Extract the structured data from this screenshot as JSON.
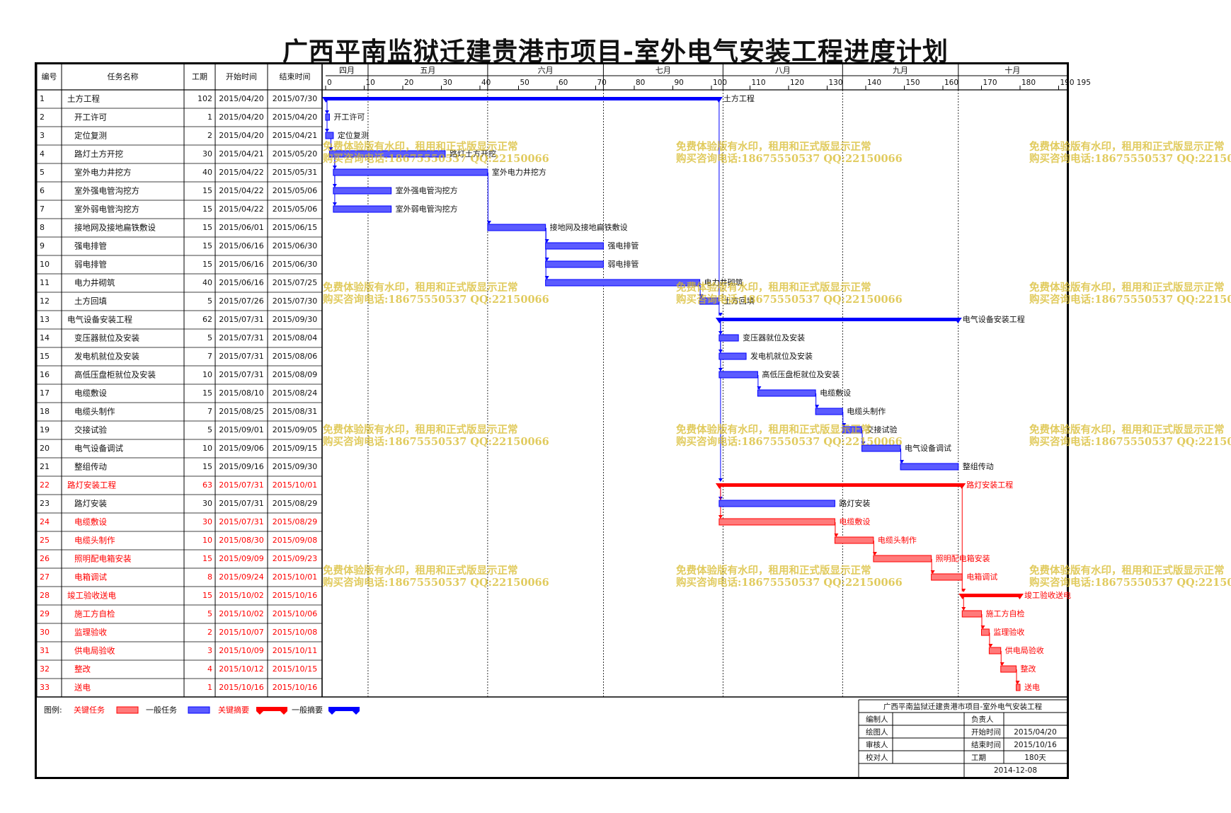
{
  "title": "广西平南监狱迁建贵港市项目-室外电气安装工程进度计划",
  "headers": {
    "no": "编号",
    "name": "任务名称",
    "dur": "工期",
    "start": "开始时间",
    "end": "结束时间"
  },
  "months": [
    {
      "label": "四月",
      "from": -19,
      "to": 11
    },
    {
      "label": "五月",
      "from": 11,
      "to": 42
    },
    {
      "label": "六月",
      "from": 42,
      "to": 72
    },
    {
      "label": "七月",
      "from": 72,
      "to": 103
    },
    {
      "label": "八月",
      "from": 103,
      "to": 134
    },
    {
      "label": "九月",
      "from": 134,
      "to": 164
    },
    {
      "label": "十月",
      "from": 164,
      "to": 195
    }
  ],
  "ticks": [
    0,
    10,
    20,
    30,
    40,
    50,
    60,
    70,
    80,
    90,
    100,
    110,
    120,
    130,
    140,
    150,
    160,
    170,
    180,
    "190 195"
  ],
  "chart_data": {
    "type": "gantt",
    "x_unit": "days since 2015/04/20",
    "xlim": [
      0,
      195
    ],
    "tasks": [
      {
        "no": "1",
        "name": "土方工程",
        "dur": 102,
        "start": "2015/04/20",
        "end": "2015/07/30",
        "s": 0,
        "e": 102,
        "kind": "summary",
        "critical": false,
        "label": "土方工程",
        "indent": 0
      },
      {
        "no": "2",
        "name": "开工许可",
        "dur": 1,
        "start": "2015/04/20",
        "end": "2015/04/20",
        "s": 0,
        "e": 1,
        "kind": "task",
        "critical": false,
        "label": "开工许可",
        "indent": 1
      },
      {
        "no": "3",
        "name": "定位复测",
        "dur": 2,
        "start": "2015/04/20",
        "end": "2015/04/21",
        "s": 0,
        "e": 2,
        "kind": "task",
        "critical": false,
        "label": "定位复测",
        "indent": 1
      },
      {
        "no": "4",
        "name": "路灯土方开挖",
        "dur": 30,
        "start": "2015/04/21",
        "end": "2015/05/20",
        "s": 1,
        "e": 31,
        "kind": "task",
        "critical": false,
        "label": "路灯土方开挖",
        "indent": 1
      },
      {
        "no": "5",
        "name": "室外电力井挖方",
        "dur": 40,
        "start": "2015/04/22",
        "end": "2015/05/31",
        "s": 2,
        "e": 42,
        "kind": "task",
        "critical": false,
        "label": "室外电力井挖方",
        "indent": 1
      },
      {
        "no": "6",
        "name": "室外强电管沟挖方",
        "dur": 15,
        "start": "2015/04/22",
        "end": "2015/05/06",
        "s": 2,
        "e": 17,
        "kind": "task",
        "critical": false,
        "label": "室外强电管沟挖方",
        "indent": 1
      },
      {
        "no": "7",
        "name": "室外弱电管沟挖方",
        "dur": 15,
        "start": "2015/04/22",
        "end": "2015/05/06",
        "s": 2,
        "e": 17,
        "kind": "task",
        "critical": false,
        "label": "室外弱电管沟挖方",
        "indent": 1
      },
      {
        "no": "8",
        "name": "接地网及接地扁铁敷设",
        "dur": 15,
        "start": "2015/06/01",
        "end": "2015/06/15",
        "s": 42,
        "e": 57,
        "kind": "task",
        "critical": false,
        "label": "接地网及接地扁铁敷设",
        "indent": 1
      },
      {
        "no": "9",
        "name": "强电排管",
        "dur": 15,
        "start": "2015/06/16",
        "end": "2015/06/30",
        "s": 57,
        "e": 72,
        "kind": "task",
        "critical": false,
        "label": "强电排管",
        "indent": 1
      },
      {
        "no": "10",
        "name": "弱电排管",
        "dur": 15,
        "start": "2015/06/16",
        "end": "2015/06/30",
        "s": 57,
        "e": 72,
        "kind": "task",
        "critical": false,
        "label": "弱电排管",
        "indent": 1
      },
      {
        "no": "11",
        "name": "电力井砌筑",
        "dur": 40,
        "start": "2015/06/16",
        "end": "2015/07/25",
        "s": 57,
        "e": 97,
        "kind": "task",
        "critical": false,
        "label": "电力井砌筑",
        "indent": 1
      },
      {
        "no": "12",
        "name": "土方回填",
        "dur": 5,
        "start": "2015/07/26",
        "end": "2015/07/30",
        "s": 97,
        "e": 102,
        "kind": "task",
        "critical": false,
        "label": "土方回填",
        "indent": 1
      },
      {
        "no": "13",
        "name": "电气设备安装工程",
        "dur": 62,
        "start": "2015/07/31",
        "end": "2015/09/30",
        "s": 102,
        "e": 164,
        "kind": "summary",
        "critical": false,
        "label": "电气设备安装工程",
        "indent": 0
      },
      {
        "no": "14",
        "name": "变压器就位及安装",
        "dur": 5,
        "start": "2015/07/31",
        "end": "2015/08/04",
        "s": 102,
        "e": 107,
        "kind": "task",
        "critical": false,
        "label": "变压器就位及安装",
        "indent": 1
      },
      {
        "no": "15",
        "name": "发电机就位及安装",
        "dur": 7,
        "start": "2015/07/31",
        "end": "2015/08/06",
        "s": 102,
        "e": 109,
        "kind": "task",
        "critical": false,
        "label": "发电机就位及安装",
        "indent": 1
      },
      {
        "no": "16",
        "name": "高低压盘柜就位及安装",
        "dur": 10,
        "start": "2015/07/31",
        "end": "2015/08/09",
        "s": 102,
        "e": 112,
        "kind": "task",
        "critical": false,
        "label": "高低压盘柜就位及安装",
        "indent": 1
      },
      {
        "no": "17",
        "name": "电缆敷设",
        "dur": 15,
        "start": "2015/08/10",
        "end": "2015/08/24",
        "s": 112,
        "e": 127,
        "kind": "task",
        "critical": false,
        "label": "电缆敷设",
        "indent": 1
      },
      {
        "no": "18",
        "name": "电缆头制作",
        "dur": 7,
        "start": "2015/08/25",
        "end": "2015/08/31",
        "s": 127,
        "e": 134,
        "kind": "task",
        "critical": false,
        "label": "电缆头制作",
        "indent": 1
      },
      {
        "no": "19",
        "name": "交接试验",
        "dur": 5,
        "start": "2015/09/01",
        "end": "2015/09/05",
        "s": 134,
        "e": 139,
        "kind": "task",
        "critical": false,
        "label": "交接试验",
        "indent": 1
      },
      {
        "no": "20",
        "name": "电气设备调试",
        "dur": 10,
        "start": "2015/09/06",
        "end": "2015/09/15",
        "s": 139,
        "e": 149,
        "kind": "task",
        "critical": false,
        "label": "电气设备调试",
        "indent": 1
      },
      {
        "no": "21",
        "name": "整组传动",
        "dur": 15,
        "start": "2015/09/16",
        "end": "2015/09/30",
        "s": 149,
        "e": 164,
        "kind": "task",
        "critical": false,
        "label": "整组传动",
        "indent": 1
      },
      {
        "no": "22",
        "name": "路灯安装工程",
        "dur": 63,
        "start": "2015/07/31",
        "end": "2015/10/01",
        "s": 102,
        "e": 165,
        "kind": "summary",
        "critical": true,
        "label": "路灯安装工程",
        "indent": 0
      },
      {
        "no": "23",
        "name": "路灯安装",
        "dur": 30,
        "start": "2015/07/31",
        "end": "2015/08/29",
        "s": 102,
        "e": 132,
        "kind": "task",
        "critical": false,
        "label": "路灯安装",
        "indent": 1
      },
      {
        "no": "24",
        "name": "电缆敷设",
        "dur": 30,
        "start": "2015/07/31",
        "end": "2015/08/29",
        "s": 102,
        "e": 132,
        "kind": "task",
        "critical": true,
        "label": "电缆敷设",
        "indent": 1
      },
      {
        "no": "25",
        "name": "电缆头制作",
        "dur": 10,
        "start": "2015/08/30",
        "end": "2015/09/08",
        "s": 132,
        "e": 142,
        "kind": "task",
        "critical": true,
        "label": "电缆头制作",
        "indent": 1
      },
      {
        "no": "26",
        "name": "照明配电箱安装",
        "dur": 15,
        "start": "2015/09/09",
        "end": "2015/09/23",
        "s": 142,
        "e": 157,
        "kind": "task",
        "critical": true,
        "label": "照明配电箱安装",
        "indent": 1
      },
      {
        "no": "27",
        "name": "电箱调试",
        "dur": 8,
        "start": "2015/09/24",
        "end": "2015/10/01",
        "s": 157,
        "e": 165,
        "kind": "task",
        "critical": true,
        "label": "电箱调试",
        "indent": 1
      },
      {
        "no": "28",
        "name": "竣工验收送电",
        "dur": 15,
        "start": "2015/10/02",
        "end": "2015/10/16",
        "s": 165,
        "e": 180,
        "kind": "summary",
        "critical": true,
        "label": "竣工验收送电",
        "indent": 0
      },
      {
        "no": "29",
        "name": "施工方自检",
        "dur": 5,
        "start": "2015/10/02",
        "end": "2015/10/06",
        "s": 165,
        "e": 170,
        "kind": "task",
        "critical": true,
        "label": "施工方自检",
        "indent": 1
      },
      {
        "no": "30",
        "name": "监理验收",
        "dur": 2,
        "start": "2015/10/07",
        "end": "2015/10/08",
        "s": 170,
        "e": 172,
        "kind": "task",
        "critical": true,
        "label": "监理验收",
        "indent": 1
      },
      {
        "no": "31",
        "name": "供电局验收",
        "dur": 3,
        "start": "2015/10/09",
        "end": "2015/10/11",
        "s": 172,
        "e": 175,
        "kind": "task",
        "critical": true,
        "label": "供电局验收",
        "indent": 1
      },
      {
        "no": "32",
        "name": "整改",
        "dur": 4,
        "start": "2015/10/12",
        "end": "2015/10/15",
        "s": 175,
        "e": 179,
        "kind": "task",
        "critical": true,
        "label": "整改",
        "indent": 1
      },
      {
        "no": "33",
        "name": "送电",
        "dur": 1,
        "start": "2015/10/16",
        "end": "2015/10/16",
        "s": 179,
        "e": 180,
        "kind": "task",
        "critical": true,
        "label": "送电",
        "indent": 1
      }
    ],
    "links": [
      [
        0,
        1
      ],
      [
        1,
        2
      ],
      [
        2,
        3
      ],
      [
        3,
        4
      ],
      [
        3,
        5
      ],
      [
        3,
        6
      ],
      [
        4,
        7
      ],
      [
        7,
        8
      ],
      [
        7,
        9
      ],
      [
        7,
        10
      ],
      [
        10,
        11
      ],
      [
        0,
        12
      ],
      [
        12,
        13
      ],
      [
        12,
        14
      ],
      [
        12,
        15
      ],
      [
        15,
        16
      ],
      [
        16,
        17
      ],
      [
        17,
        18
      ],
      [
        18,
        19
      ],
      [
        19,
        20
      ],
      [
        12,
        21
      ],
      [
        21,
        22
      ],
      [
        21,
        23
      ],
      [
        23,
        24
      ],
      [
        24,
        25
      ],
      [
        25,
        26
      ],
      [
        21,
        27
      ],
      [
        27,
        28
      ],
      [
        28,
        29
      ],
      [
        29,
        30
      ],
      [
        30,
        31
      ],
      [
        31,
        32
      ]
    ]
  },
  "legend": {
    "prefix": "图例:",
    "critical_task": "关键任务",
    "normal_task": "一般任务",
    "critical_summary": "关键摘要",
    "normal_summary": "一般摘要"
  },
  "infobox": {
    "title": "广西平南监狱迁建贵港市项目-室外电气安装工程",
    "rows": [
      [
        "编制人",
        "",
        "负责人",
        ""
      ],
      [
        "绘图人",
        "",
        "开始时间",
        "2015/04/20"
      ],
      [
        "审核人",
        "",
        "结束时间",
        "2015/10/16"
      ],
      [
        "校对人",
        "",
        "工期",
        "180天"
      ]
    ],
    "date": "2014-12-08"
  },
  "watermark": {
    "line1": "免费体验版有水印，租用和正式版显示正常",
    "line2": "购买咨询电话:18675550537 QQ:22150066"
  },
  "colors": {
    "normal": "#0000ff",
    "normal_fill": "#5b5bff",
    "critical": "#ff0000",
    "critical_fill": "#ff7a7a",
    "link": "#0000ff",
    "critical_link": "#ff0000"
  }
}
